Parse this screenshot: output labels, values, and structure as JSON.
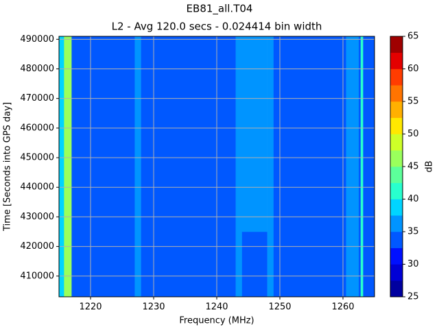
{
  "chart_data": {
    "type": "heatmap",
    "title": "EB81_all.T04",
    "subtitle": "L2 - Avg 120.0 secs - 0.024414 bin width",
    "xlabel": "Frequency (MHz)",
    "ylabel": "Time [Seconds into GPS day]",
    "colorbar_label": "dB",
    "xlim": [
      1215,
      1265
    ],
    "ylim": [
      403000,
      491000
    ],
    "xticks": [
      1220,
      1230,
      1240,
      1250,
      1260
    ],
    "yticks": [
      410000,
      420000,
      430000,
      440000,
      450000,
      460000,
      470000,
      480000,
      490000
    ],
    "grid": true,
    "x_edges": [
      1215,
      1215.8,
      1217,
      1227,
      1228,
      1243,
      1244,
      1248,
      1249,
      1260.5,
      1262.5,
      1262.8,
      1263.2,
      1265
    ],
    "y_edges": [
      403000,
      425000,
      447000,
      469000,
      491000
    ],
    "values": [
      [
        38,
        46,
        34,
        36,
        34,
        36,
        34,
        37,
        34,
        37,
        34,
        41,
        34
      ],
      [
        38,
        46,
        34,
        36,
        34,
        36,
        35,
        37,
        34,
        37,
        34,
        41,
        34
      ],
      [
        38,
        46,
        34,
        35,
        34,
        36,
        35,
        37,
        34,
        37,
        34,
        41,
        34
      ],
      [
        38,
        46,
        34,
        36,
        34,
        36,
        35,
        37,
        34,
        37,
        34,
        41,
        34
      ]
    ],
    "levels": [
      25,
      27.5,
      30,
      32.5,
      35,
      37.5,
      40,
      42.5,
      45,
      47.5,
      50,
      52.5,
      55,
      57.5,
      60,
      62.5,
      65
    ],
    "colors": [
      "#00009f",
      "#0000d6",
      "#0010ff",
      "#0058ff",
      "#0094ff",
      "#00d4ff",
      "#28ffce",
      "#5cff9a",
      "#9aff5c",
      "#ceff28",
      "#ffe800",
      "#ffb000",
      "#ff7400",
      "#ff3c00",
      "#e40000",
      "#9f0000"
    ],
    "cticks": [
      25,
      30,
      35,
      40,
      45,
      50,
      55,
      60,
      65
    ]
  }
}
